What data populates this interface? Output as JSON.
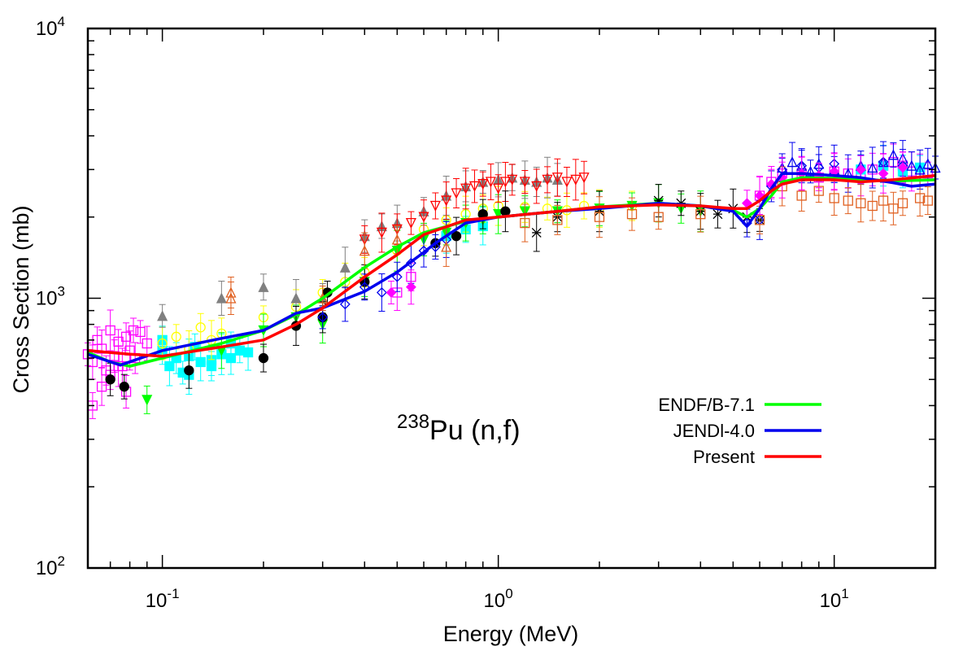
{
  "chart_data": {
    "type": "line",
    "title": "",
    "annotation": {
      "sup": "238",
      "text": "Pu (n,f)"
    },
    "xlabel": "Energy (MeV)",
    "ylabel": "Cross Section (mb)",
    "xscale": "log",
    "yscale": "log",
    "xlim": [
      0.06,
      20
    ],
    "ylim": [
      100,
      10000
    ],
    "x_ticks": [
      {
        "value": 0.1,
        "base": "10",
        "exp": "-1"
      },
      {
        "value": 1,
        "base": "10",
        "exp": "0"
      },
      {
        "value": 10,
        "base": "10",
        "exp": "1"
      }
    ],
    "y_ticks": [
      {
        "value": 100,
        "base": "10",
        "exp": "2"
      },
      {
        "value": 1000,
        "base": "10",
        "exp": "3"
      },
      {
        "value": 10000,
        "base": "10",
        "exp": "4"
      }
    ],
    "legend_position": "bottom-right",
    "series": [
      {
        "name": "ENDF/B-7.1",
        "color": "#00ff00",
        "x": [
          0.06,
          0.07,
          0.08,
          0.1,
          0.15,
          0.2,
          0.25,
          0.3,
          0.4,
          0.5,
          0.6,
          0.8,
          1.0,
          1.5,
          2.0,
          3.0,
          4.0,
          5.0,
          5.5,
          6.0,
          6.5,
          7.0,
          8.0,
          10.0,
          12.0,
          15.0,
          20.0
        ],
        "y": [
          630,
          580,
          560,
          600,
          680,
          760,
          870,
          1000,
          1300,
          1550,
          1750,
          1930,
          2000,
          2100,
          2180,
          2250,
          2200,
          2120,
          2000,
          2150,
          2400,
          2700,
          2800,
          2780,
          2760,
          2720,
          2750
        ]
      },
      {
        "name": "JENDl-4.0",
        "color": "#0000ee",
        "x": [
          0.06,
          0.075,
          0.1,
          0.15,
          0.2,
          0.25,
          0.3,
          0.4,
          0.5,
          0.6,
          0.65,
          0.8,
          1.0,
          1.5,
          2.0,
          3.0,
          4.0,
          5.0,
          5.5,
          6.0,
          6.5,
          7.0,
          8.0,
          10.0,
          12.0,
          15.0,
          17.0,
          20.0
        ],
        "y": [
          620,
          565,
          640,
          710,
          760,
          880,
          920,
          1060,
          1250,
          1480,
          1600,
          1900,
          2000,
          2100,
          2150,
          2250,
          2200,
          2100,
          1850,
          2150,
          2550,
          2900,
          2900,
          2850,
          2800,
          2680,
          2600,
          2650
        ]
      },
      {
        "name": "Present",
        "color": "#ff0000",
        "x": [
          0.06,
          0.08,
          0.1,
          0.15,
          0.2,
          0.25,
          0.3,
          0.4,
          0.5,
          0.6,
          0.8,
          1.0,
          1.5,
          2.0,
          3.0,
          4.0,
          5.0,
          5.5,
          6.0,
          6.5,
          7.0,
          8.0,
          10.0,
          12.0,
          15.0,
          20.0
        ],
        "y": [
          640,
          620,
          610,
          660,
          700,
          800,
          920,
          1200,
          1450,
          1720,
          1950,
          2000,
          2100,
          2180,
          2220,
          2200,
          2150,
          2150,
          2300,
          2500,
          2650,
          2750,
          2750,
          2700,
          2750,
          2850
        ]
      }
    ],
    "exp_series": [
      {
        "color": "#ff00ff",
        "marker": "open-square",
        "x": [
          0.06,
          0.062,
          0.064,
          0.066,
          0.068,
          0.07,
          0.072,
          0.074,
          0.076,
          0.078,
          0.08,
          0.083,
          0.086,
          0.09,
          0.062,
          0.066,
          0.07,
          0.074,
          0.078,
          0.082,
          0.5,
          0.55,
          6.0,
          6.5,
          7.0,
          8.0,
          9.0,
          10.0,
          11.0,
          12.0,
          13.0,
          14.0,
          15.0,
          16.0,
          17.0,
          18.0,
          19.0
        ],
        "y": [
          620,
          580,
          700,
          650,
          540,
          760,
          610,
          690,
          560,
          720,
          640,
          600,
          750,
          680,
          400,
          470,
          520,
          560,
          450,
          760,
          1050,
          1200,
          2400,
          2700,
          2900,
          2900,
          2800,
          2950,
          2900,
          2850,
          3000,
          3100,
          3200,
          3100,
          2950,
          3000,
          2900
        ]
      },
      {
        "color": "#00ffff",
        "marker": "filled-square",
        "x": [
          0.1,
          0.105,
          0.11,
          0.115,
          0.12,
          0.125,
          0.13,
          0.14,
          0.15,
          0.16,
          0.17,
          0.18,
          0.1,
          0.12,
          0.14,
          0.16,
          0.7,
          0.8,
          0.9,
          12.0,
          14.0,
          16.0,
          18.0
        ],
        "y": [
          640,
          560,
          600,
          530,
          610,
          660,
          580,
          560,
          620,
          600,
          640,
          630,
          700,
          520,
          590,
          680,
          1700,
          1800,
          1850,
          3000,
          3100,
          2950,
          3050
        ]
      },
      {
        "color": "#ffff00",
        "marker": "open-circle",
        "x": [
          0.1,
          0.11,
          0.12,
          0.13,
          0.14,
          0.15,
          0.2,
          0.25,
          0.3,
          0.35,
          0.4,
          0.5,
          0.6,
          0.7,
          0.8,
          0.9,
          1.0,
          1.2,
          1.4,
          1.6,
          1.8,
          2.0,
          2.5
        ],
        "y": [
          680,
          720,
          650,
          780,
          700,
          740,
          850,
          930,
          1050,
          1150,
          1250,
          1500,
          1800,
          1950,
          2050,
          2150,
          2200,
          2180,
          2150,
          2120,
          2200,
          2150,
          2200
        ]
      },
      {
        "color": "#00ff00",
        "marker": "filled-down-triangle",
        "x": [
          0.3,
          0.4,
          0.5,
          0.6,
          0.7,
          0.8,
          0.9,
          1.0,
          1.2,
          1.5,
          2.0,
          2.5,
          3.0,
          3.5,
          4.0,
          0.2,
          0.25,
          0.15,
          0.09
        ],
        "y": [
          800,
          1150,
          1500,
          1650,
          1750,
          1900,
          1950,
          2050,
          2100,
          2100,
          2150,
          2200,
          2250,
          2150,
          2100,
          760,
          850,
          640,
          420
        ]
      },
      {
        "color": "#808080",
        "marker": "filled-triangle",
        "x": [
          0.1,
          0.15,
          0.2,
          0.25,
          0.3,
          0.35,
          0.4,
          0.45,
          0.5,
          0.6,
          0.7,
          0.8,
          0.9,
          1.0,
          1.1,
          1.2,
          1.3,
          1.4,
          1.5
        ],
        "y": [
          860,
          1000,
          1100,
          1000,
          1000,
          1300,
          1700,
          1850,
          1900,
          2100,
          2400,
          2600,
          2700,
          2750,
          2800,
          2750,
          2700,
          2800,
          2750
        ]
      },
      {
        "color": "#ff0000",
        "marker": "open-down-triangle",
        "x": [
          0.4,
          0.45,
          0.5,
          0.55,
          0.6,
          0.65,
          0.7,
          0.75,
          0.8,
          0.85,
          0.9,
          0.95,
          1.0,
          1.05,
          1.1,
          1.2,
          1.3,
          1.4,
          1.5,
          1.6,
          1.7,
          1.8
        ],
        "y": [
          1650,
          1750,
          1800,
          1900,
          2000,
          2200,
          2300,
          2450,
          2550,
          2600,
          2650,
          2700,
          2550,
          2700,
          2750,
          2700,
          2600,
          2750,
          2800,
          2700,
          2750,
          2800
        ]
      },
      {
        "color": "#000000",
        "marker": "filled-circle",
        "x": [
          0.07,
          0.077,
          0.12,
          0.2,
          0.25,
          0.3,
          0.31,
          0.4,
          0.65,
          0.75,
          0.9,
          1.05
        ],
        "y": [
          500,
          470,
          540,
          600,
          790,
          850,
          1050,
          1150,
          1600,
          1700,
          2050,
          2100
        ]
      },
      {
        "color": "#000000",
        "marker": "star",
        "x": [
          1.3,
          1.5,
          2.0,
          3.0,
          3.5,
          4.0,
          4.5,
          5.0,
          5.5,
          6.0
        ],
        "y": [
          1750,
          2000,
          2100,
          2300,
          2250,
          2100,
          2050,
          2150,
          2000,
          1950
        ]
      },
      {
        "color": "#0000ee",
        "marker": "open-diamond",
        "x": [
          0.3,
          0.35,
          0.4,
          0.45,
          0.5,
          0.55,
          0.6,
          0.65,
          0.7,
          5.5,
          6.0,
          6.5,
          7.0,
          8.0,
          9.0,
          10.0,
          12.0,
          14.0,
          16.0
        ],
        "y": [
          850,
          950,
          1100,
          1050,
          1200,
          1350,
          1500,
          1550,
          1650,
          1900,
          1950,
          2600,
          3000,
          3100,
          3050,
          3150,
          3000,
          3200,
          3100
        ]
      },
      {
        "color": "#0000ee",
        "marker": "open-triangle",
        "x": [
          7.0,
          7.5,
          8.0,
          8.5,
          9.0,
          10.0,
          11.0,
          12.0,
          13.0,
          14.0,
          15.0,
          16.0,
          17.0,
          18.0,
          19.0,
          20.0
        ],
        "y": [
          3050,
          3200,
          3100,
          2950,
          3150,
          3000,
          2900,
          3100,
          3050,
          3200,
          3400,
          3300,
          3100,
          3000,
          3150,
          3050
        ]
      },
      {
        "color": "#e06020",
        "marker": "open-triangle",
        "x": [
          0.16,
          0.3,
          0.4,
          0.5,
          0.7,
          0.16
        ],
        "y": [
          1000,
          1000,
          1500,
          1650,
          1550,
          1050
        ]
      },
      {
        "color": "#e06020",
        "marker": "open-square",
        "x": [
          1.2,
          1.5,
          2.0,
          2.5,
          3.0,
          4.0,
          6.0,
          7.0,
          8.0,
          9.0,
          10.0,
          11.0,
          12.0,
          13.0,
          14.0,
          15.0,
          16.0,
          18.0,
          19.0
        ],
        "y": [
          1900,
          1950,
          2000,
          2050,
          2000,
          2050,
          1950,
          2600,
          2400,
          2500,
          2350,
          2300,
          2250,
          2200,
          2300,
          2150,
          2250,
          2350,
          2300
        ]
      },
      {
        "color": "#ff00ff",
        "marker": "filled-diamond",
        "x": [
          0.48,
          0.55,
          5.5,
          6.0,
          6.5,
          7.0,
          8.0,
          9.0,
          10.0,
          12.0,
          14.0,
          16.0
        ],
        "y": [
          1050,
          1100,
          2250,
          2400,
          2650,
          2800,
          2900,
          2850,
          2950,
          3000,
          2900,
          3050
        ]
      }
    ]
  }
}
